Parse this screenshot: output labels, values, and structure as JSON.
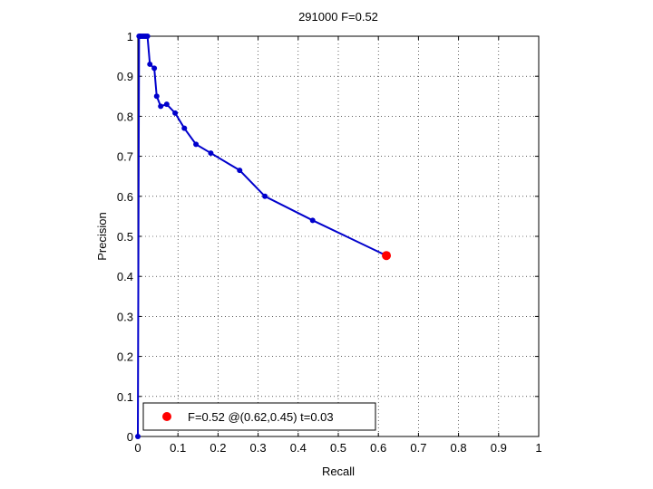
{
  "chart_data": {
    "type": "line",
    "title": "291000 F=0.52",
    "xlabel": "Recall",
    "ylabel": "Precision",
    "xlim": [
      0,
      1
    ],
    "ylim": [
      0,
      1
    ],
    "grid": true,
    "xticks": [
      0,
      0.1,
      0.2,
      0.3,
      0.4,
      0.5,
      0.6,
      0.7,
      0.8,
      0.9,
      1
    ],
    "yticks": [
      0,
      0.1,
      0.2,
      0.3,
      0.4,
      0.5,
      0.6,
      0.7,
      0.8,
      0.9,
      1
    ],
    "xtick_labels": [
      "0",
      "0.1",
      "0.2",
      "0.3",
      "0.4",
      "0.5",
      "0.6",
      "0.7",
      "0.8",
      "0.9",
      "1"
    ],
    "ytick_labels": [
      "0",
      "0.1",
      "0.2",
      "0.3",
      "0.4",
      "0.5",
      "0.6",
      "0.7",
      "0.8",
      "0.9",
      "1"
    ],
    "series": [
      {
        "color": "#0000cc",
        "x": [
          0.62,
          0.436,
          0.317,
          0.254,
          0.182,
          0.145,
          0.116,
          0.093,
          0.072,
          0.057,
          0.047,
          0.041,
          0.03,
          0.024,
          0.02,
          0.016,
          0.012,
          0.008,
          0.005,
          0.003,
          0
        ],
        "y": [
          0.452,
          0.54,
          0.6,
          0.665,
          0.708,
          0.73,
          0.77,
          0.808,
          0.83,
          0.825,
          0.85,
          0.92,
          0.93,
          1,
          1,
          1,
          1,
          1,
          1,
          1,
          0
        ]
      }
    ],
    "highlight_point": {
      "x": 0.62,
      "y": 0.452,
      "color": "#ff0000"
    },
    "legend": {
      "position": "bottom-left",
      "label": "F=0.52 @(0.62,0.45) t=0.03"
    }
  }
}
